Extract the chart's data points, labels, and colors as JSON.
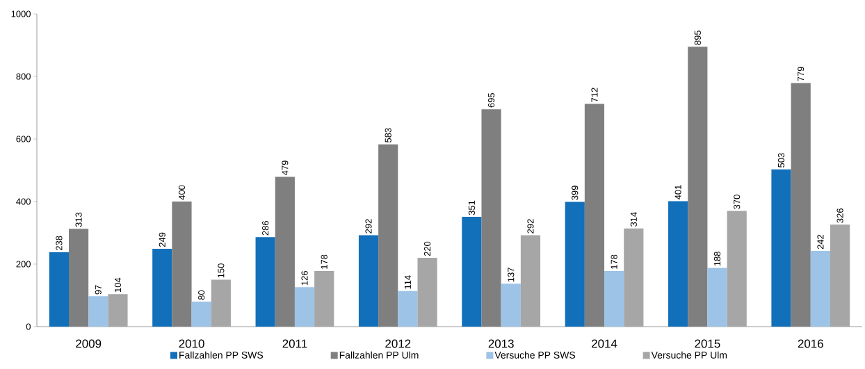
{
  "chart_data": {
    "type": "bar",
    "categories": [
      "2009",
      "2010",
      "2011",
      "2012",
      "2013",
      "2014",
      "2015",
      "2016"
    ],
    "series": [
      {
        "name": "Fallzahlen PP SWS",
        "color": "#126fba",
        "values": [
          238,
          249,
          286,
          292,
          351,
          399,
          401,
          503
        ]
      },
      {
        "name": "Fallzahlen PP Ulm",
        "color": "#7f7f7f",
        "values": [
          313,
          400,
          479,
          583,
          695,
          712,
          895,
          779
        ]
      },
      {
        "name": "Versuche PP SWS",
        "color": "#9dc3e6",
        "values": [
          97,
          80,
          126,
          114,
          137,
          178,
          188,
          242
        ]
      },
      {
        "name": "Versuche PP Ulm",
        "color": "#a6a6a6",
        "values": [
          104,
          150,
          178,
          220,
          292,
          314,
          370,
          326
        ]
      }
    ],
    "ylim": [
      0,
      1000
    ],
    "yticks": [
      0,
      200,
      400,
      600,
      800,
      1000
    ],
    "data_labels": true,
    "legend": "bottom",
    "grid": false
  }
}
